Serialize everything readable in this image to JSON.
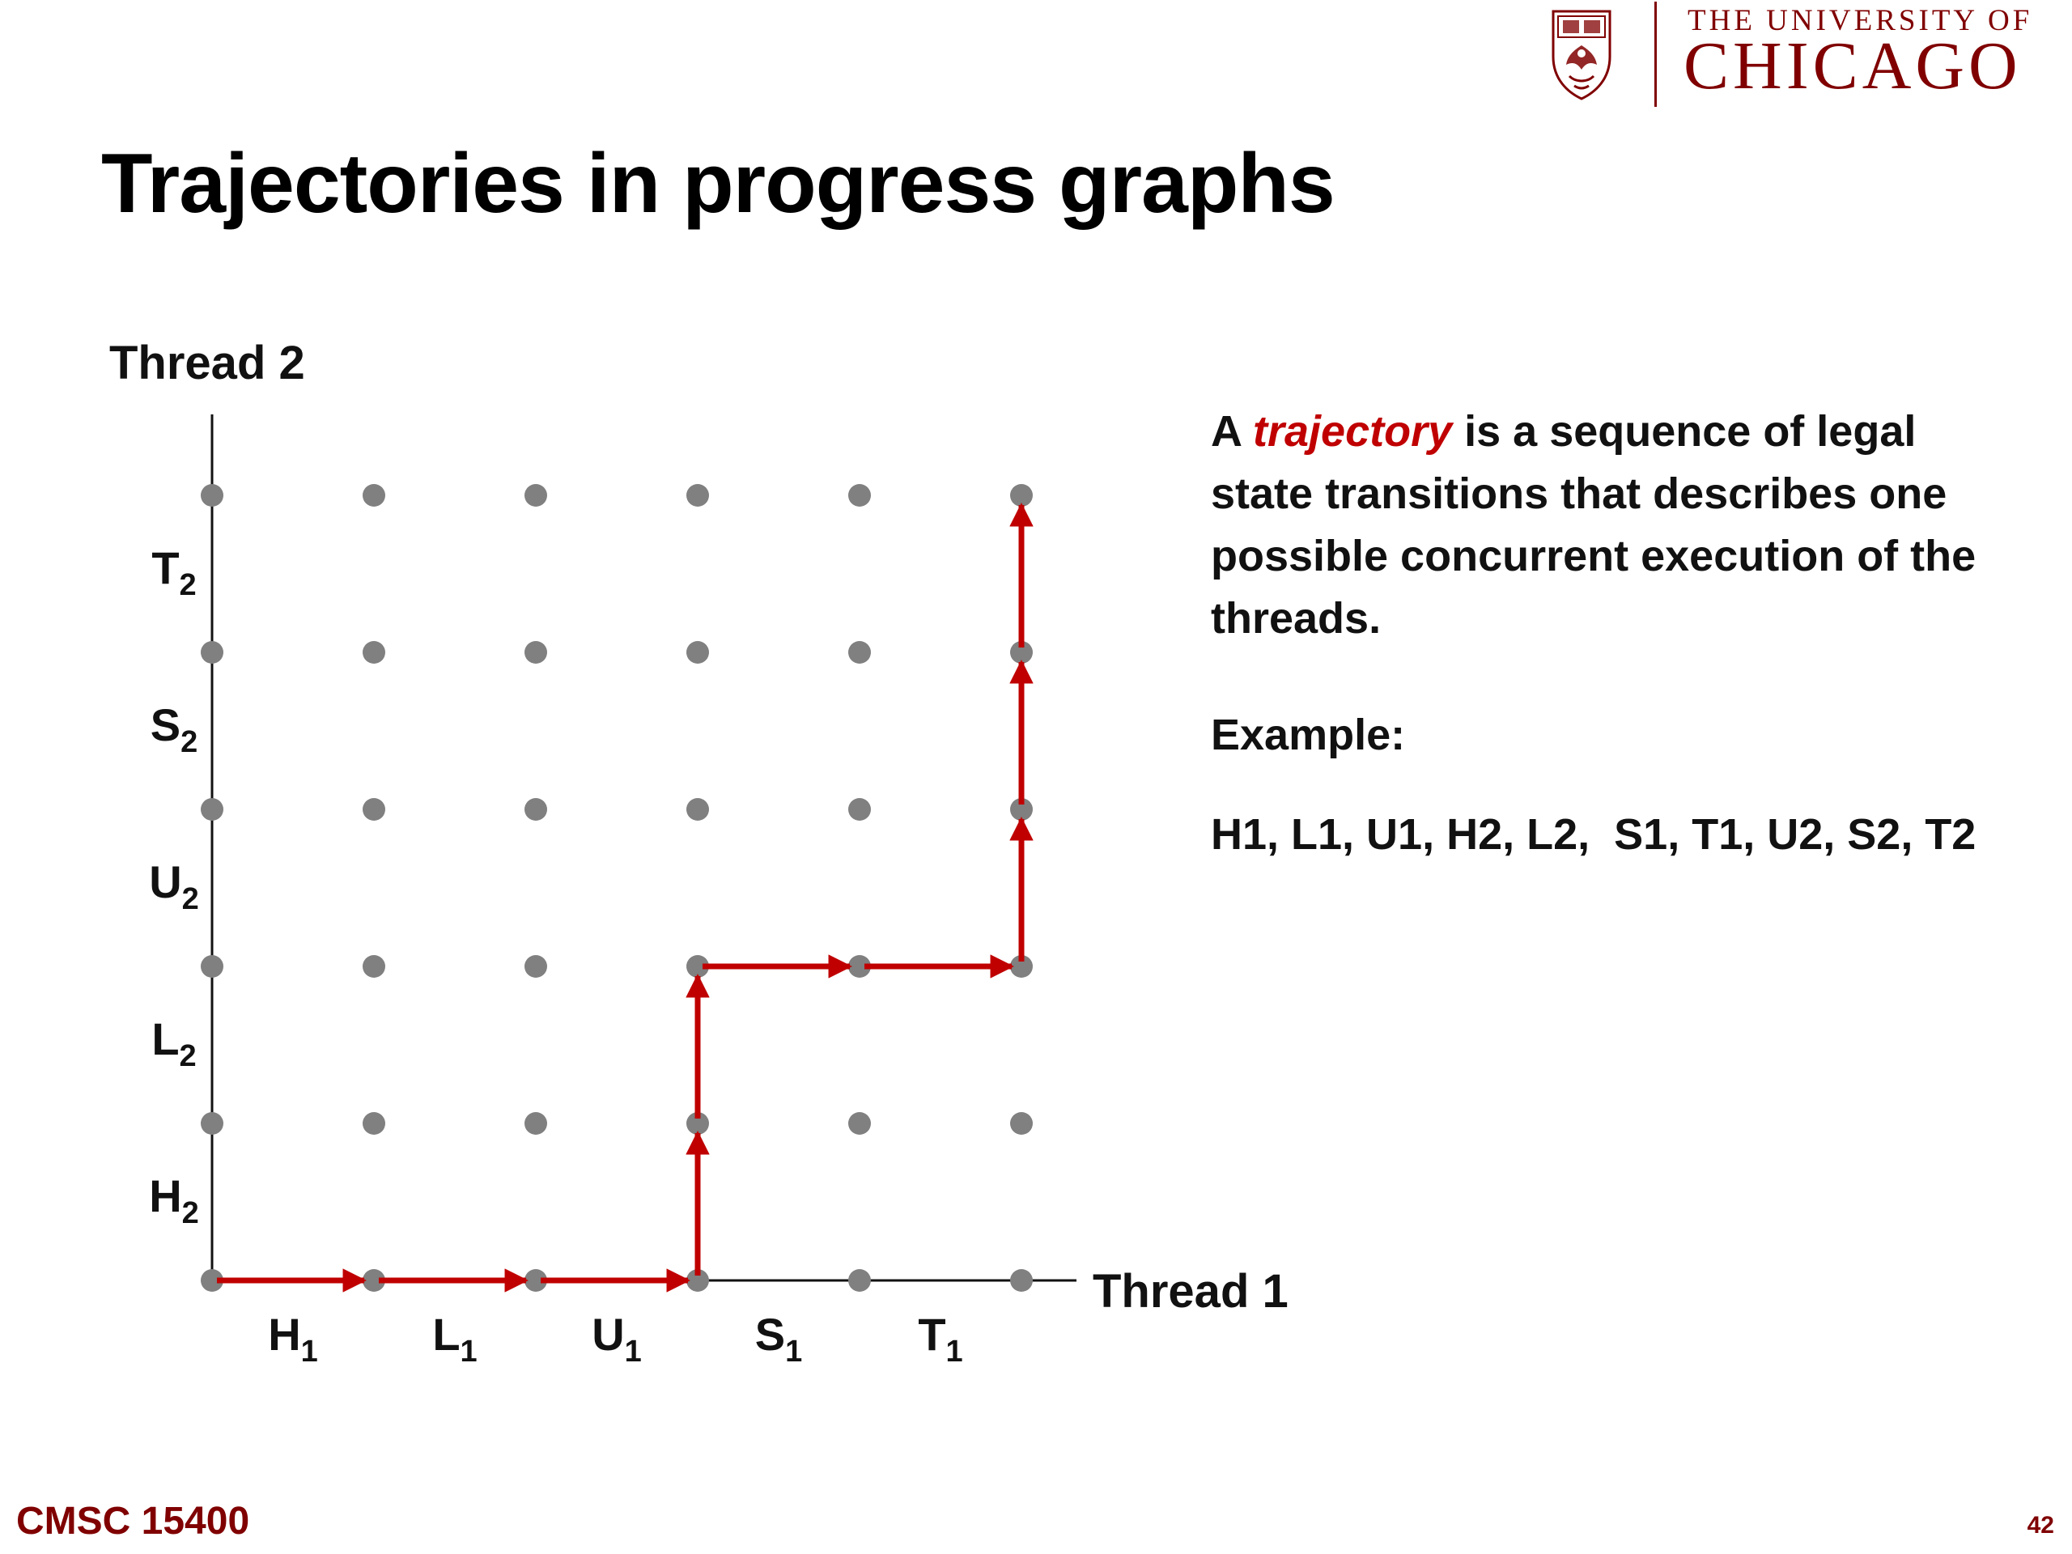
{
  "header": {
    "university_line1": "THE UNIVERSITY OF",
    "university_line2": "CHICAGO",
    "crest_icon": "university-crest-icon"
  },
  "slide": {
    "title": "Trajectories in progress graphs"
  },
  "diagram": {
    "y_axis_label": "Thread 2",
    "x_axis_label": "Thread 1",
    "thread1_steps": [
      {
        "letter": "H",
        "sub": "1"
      },
      {
        "letter": "L",
        "sub": "1"
      },
      {
        "letter": "U",
        "sub": "1"
      },
      {
        "letter": "S",
        "sub": "1"
      },
      {
        "letter": "T",
        "sub": "1"
      }
    ],
    "thread2_steps": [
      {
        "letter": "H",
        "sub": "2"
      },
      {
        "letter": "L",
        "sub": "2"
      },
      {
        "letter": "U",
        "sub": "2"
      },
      {
        "letter": "S",
        "sub": "2"
      },
      {
        "letter": "T",
        "sub": "2"
      }
    ],
    "trajectory_states": [
      [
        0,
        0
      ],
      [
        1,
        0
      ],
      [
        2,
        0
      ],
      [
        3,
        0
      ],
      [
        3,
        1
      ],
      [
        3,
        2
      ],
      [
        4,
        2
      ],
      [
        5,
        2
      ],
      [
        5,
        3
      ],
      [
        5,
        4
      ],
      [
        5,
        5
      ]
    ],
    "colors": {
      "point": "#808080",
      "trajectory": "#c00000",
      "axis": "#111111"
    }
  },
  "explanation": {
    "prefix": "A ",
    "emphasis": "trajectory",
    "suffix": " is a sequence of legal state transitions that describes one possible concurrent execution of the threads.",
    "example_label": "Example:",
    "example_sequence": "H1, L1, U1, H2, L2,  S1, T1, U2, S2, T2"
  },
  "footer": {
    "course": "CMSC 15400",
    "page_number": "42"
  }
}
